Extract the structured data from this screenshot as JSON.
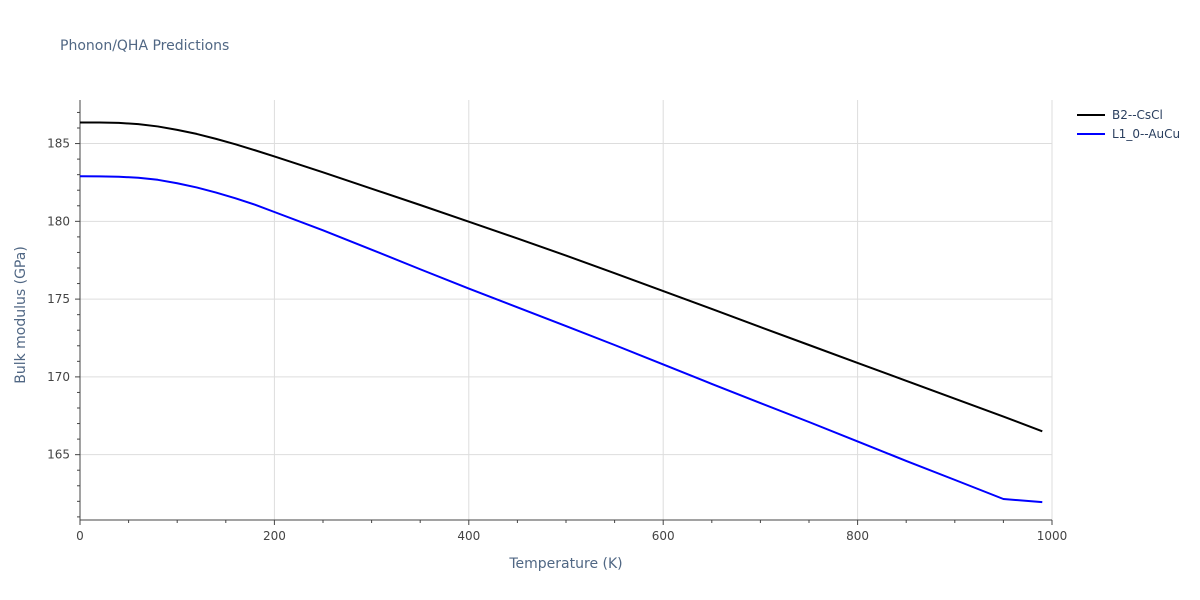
{
  "chart_data": {
    "type": "line",
    "title": "Phonon/QHA Predictions",
    "xlabel": "Temperature (K)",
    "ylabel": "Bulk modulus (GPa)",
    "xlim": [
      0,
      1000
    ],
    "ylim": [
      160.8,
      187.8
    ],
    "x_ticks": [
      0,
      200,
      400,
      600,
      800,
      1000
    ],
    "y_ticks": [
      165,
      170,
      175,
      180,
      185
    ],
    "grid": true,
    "legend_position": "top-right",
    "series": [
      {
        "name": "B2--CsCl",
        "color": "#000000",
        "points": [
          [
            0,
            186.35
          ],
          [
            20,
            186.35
          ],
          [
            40,
            186.33
          ],
          [
            60,
            186.25
          ],
          [
            80,
            186.1
          ],
          [
            100,
            185.88
          ],
          [
            120,
            185.62
          ],
          [
            140,
            185.3
          ],
          [
            160,
            184.95
          ],
          [
            180,
            184.57
          ],
          [
            200,
            184.17
          ],
          [
            250,
            183.15
          ],
          [
            300,
            182.1
          ],
          [
            350,
            181.05
          ],
          [
            400,
            179.98
          ],
          [
            450,
            178.9
          ],
          [
            500,
            177.8
          ],
          [
            550,
            176.67
          ],
          [
            600,
            175.52
          ],
          [
            650,
            174.37
          ],
          [
            700,
            173.2
          ],
          [
            750,
            172.05
          ],
          [
            800,
            170.9
          ],
          [
            850,
            169.75
          ],
          [
            900,
            168.6
          ],
          [
            950,
            167.45
          ],
          [
            990,
            166.5
          ]
        ]
      },
      {
        "name": "L1_0--AuCu",
        "color": "#0000ff",
        "points": [
          [
            0,
            182.9
          ],
          [
            20,
            182.89
          ],
          [
            40,
            182.87
          ],
          [
            60,
            182.8
          ],
          [
            80,
            182.67
          ],
          [
            100,
            182.45
          ],
          [
            120,
            182.18
          ],
          [
            140,
            181.85
          ],
          [
            160,
            181.48
          ],
          [
            180,
            181.07
          ],
          [
            200,
            180.6
          ],
          [
            250,
            179.42
          ],
          [
            300,
            178.18
          ],
          [
            350,
            176.92
          ],
          [
            400,
            175.68
          ],
          [
            450,
            174.47
          ],
          [
            500,
            173.27
          ],
          [
            550,
            172.05
          ],
          [
            600,
            170.8
          ],
          [
            650,
            169.55
          ],
          [
            700,
            168.32
          ],
          [
            750,
            167.1
          ],
          [
            800,
            165.85
          ],
          [
            850,
            164.6
          ],
          [
            900,
            163.38
          ],
          [
            950,
            162.15
          ],
          [
            990,
            161.95
          ]
        ]
      }
    ]
  }
}
